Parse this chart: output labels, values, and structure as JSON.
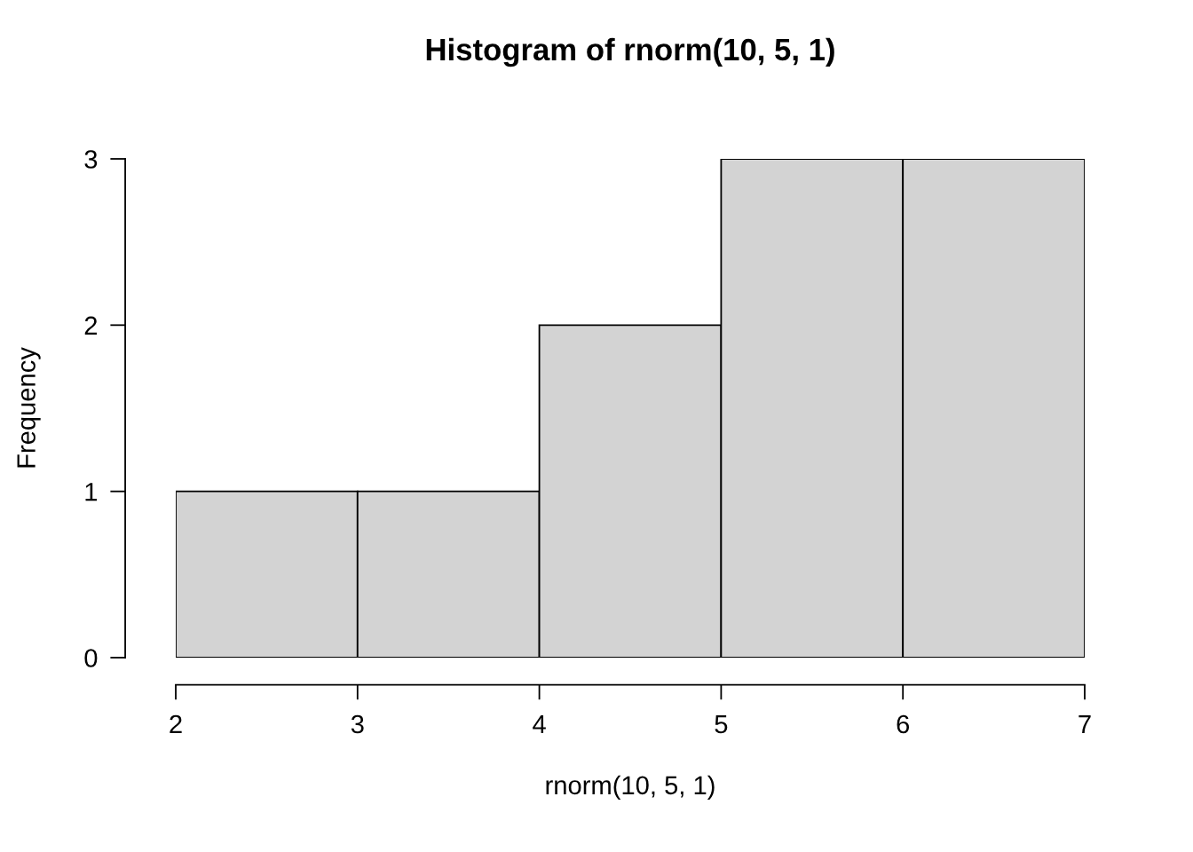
{
  "chart_data": {
    "type": "histogram",
    "title": "Histogram of rnorm(10, 5, 1)",
    "xlabel": "rnorm(10, 5, 1)",
    "ylabel": "Frequency",
    "bins": [
      2,
      3,
      4,
      5,
      6,
      7
    ],
    "values": [
      1,
      1,
      2,
      3,
      3
    ],
    "color": "#d3d3d3",
    "xlim": [
      2,
      7
    ],
    "ylim": [
      0,
      3
    ],
    "xticks": [
      2,
      3,
      4,
      5,
      6,
      7
    ],
    "yticks": [
      0,
      1,
      2,
      3
    ],
    "grid": false
  }
}
